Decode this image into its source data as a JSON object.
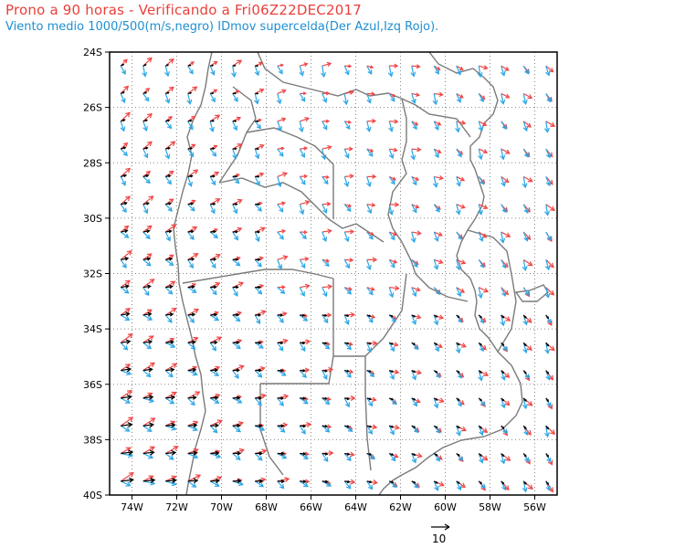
{
  "header": {
    "title": "Prono a 90 horas - Verificando a Fri06Z22DEC2017",
    "subtitle": "Viento medio 1000/500(m/s,negro) IDmov supercelda(Der Azul,Izq Rojo)."
  },
  "map": {
    "lon_range": [
      -75,
      -55
    ],
    "lat_range": [
      -40,
      -24
    ],
    "lat_ticks": [
      "24S",
      "26S",
      "28S",
      "30S",
      "32S",
      "34S",
      "36S",
      "38S",
      "40S"
    ],
    "lon_ticks": [
      "74W",
      "72W",
      "70W",
      "68W",
      "66W",
      "64W",
      "62W",
      "60W",
      "58W",
      "56W"
    ],
    "grid": "dotted",
    "colors": {
      "mean_wind": "#000000",
      "supercell_right": "#2aa6e6",
      "supercell_left": "#f04545",
      "borders": "#7a7a7a",
      "title": "#e8403a",
      "subtitle": "#1f8fd0"
    }
  },
  "reference_vector": {
    "label": "10",
    "units": "m/s"
  }
}
